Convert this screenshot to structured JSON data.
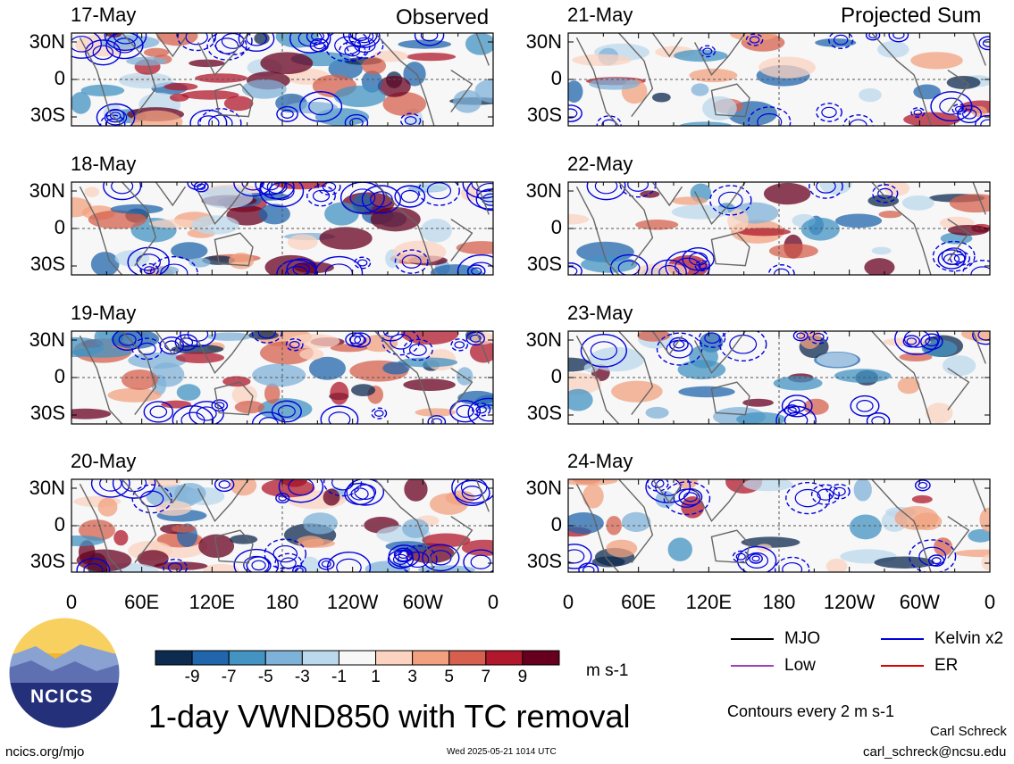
{
  "figure": {
    "column_titles": {
      "left": "Observed",
      "right": "Projected Sum"
    },
    "title": "1-day VWND850 with TC removal",
    "footer_left": "ncics.org/mjo",
    "footer_center": "Wed 2025-05-21 1014 UTC",
    "author": "Carl Schreck",
    "email": "carl_schreck@ncsu.edu",
    "logo_text": "NCICS",
    "contour_note": "Contours every 2 m s-1"
  },
  "chart_data": {
    "type": "heatmap",
    "variable": "VWND850",
    "units": "m s-1",
    "panels": [
      {
        "date": "17-May",
        "column": "Observed"
      },
      {
        "date": "18-May",
        "column": "Observed"
      },
      {
        "date": "19-May",
        "column": "Observed"
      },
      {
        "date": "20-May",
        "column": "Observed"
      },
      {
        "date": "21-May",
        "column": "Projected Sum"
      },
      {
        "date": "22-May",
        "column": "Projected Sum"
      },
      {
        "date": "23-May",
        "column": "Projected Sum"
      },
      {
        "date": "24-May",
        "column": "Projected Sum"
      }
    ],
    "y_ticks": [
      "30N",
      "0",
      "30S"
    ],
    "x_ticks": [
      "0",
      "60E",
      "120E",
      "180",
      "120W",
      "60W",
      "0"
    ],
    "colorbar": {
      "ticks": [
        "-9",
        "-7",
        "-5",
        "-3",
        "-1",
        "1",
        "3",
        "5",
        "7",
        "9"
      ],
      "colors": [
        "#0d2a4f",
        "#2166ac",
        "#4393c3",
        "#7fb2d8",
        "#bcd8ec",
        "#f7f7f7",
        "#fbd3c0",
        "#f2a17f",
        "#d6604d",
        "#b2182b",
        "#67001f"
      ]
    },
    "legend": [
      {
        "label": "MJO",
        "color": "#000000"
      },
      {
        "label": "Kelvin x2",
        "color": "#0000dd"
      },
      {
        "label": "Low",
        "color": "#a040c0"
      },
      {
        "label": "ER",
        "color": "#dd0000"
      }
    ]
  }
}
